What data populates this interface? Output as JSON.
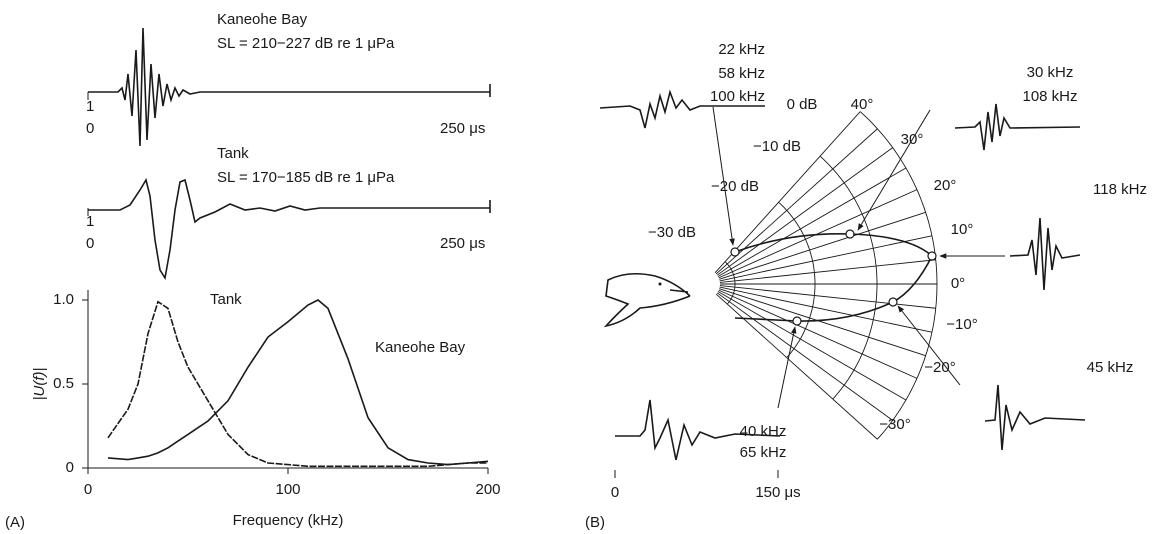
{
  "panel_a": {
    "label": "(A)",
    "waveforms": [
      {
        "site": "Kaneohe Bay",
        "source_level": "SL = 210−227 dB re 1 μPa",
        "y_top": "1",
        "y_bottom": "0",
        "time_end": "250 μs"
      },
      {
        "site": "Tank",
        "source_level": "SL = 170−185 dB re 1 μPa",
        "y_top": "1",
        "y_bottom": "0",
        "time_end": "250 μs"
      }
    ]
  },
  "chart_data": {
    "type": "line",
    "xlabel": "Frequency (kHz)",
    "ylabel": "|U(f)|",
    "x": [
      10,
      20,
      25,
      30,
      35,
      40,
      45,
      50,
      55,
      60,
      70,
      80,
      90,
      100,
      110,
      115,
      120,
      130,
      140,
      150,
      160,
      170,
      180,
      190,
      200
    ],
    "series": [
      {
        "name": "Tank",
        "color": "#1a1a1a",
        "line_style": "dashed",
        "values": [
          0.18,
          0.35,
          0.5,
          0.8,
          0.99,
          0.95,
          0.75,
          0.6,
          0.5,
          0.4,
          0.2,
          0.08,
          0.03,
          0.02,
          0.01,
          0.01,
          0.01,
          0.01,
          0.01,
          0.01,
          0.01,
          0.01,
          0.02,
          0.03,
          0.03
        ]
      },
      {
        "name": "Kaneohe Bay",
        "color": "#1a1a1a",
        "line_style": "solid",
        "values": [
          0.06,
          0.05,
          0.06,
          0.07,
          0.09,
          0.12,
          0.16,
          0.2,
          0.24,
          0.28,
          0.4,
          0.6,
          0.78,
          0.87,
          0.97,
          1.0,
          0.95,
          0.65,
          0.3,
          0.12,
          0.05,
          0.03,
          0.02,
          0.03,
          0.04
        ]
      }
    ],
    "xlim": [
      0,
      200
    ],
    "xticks": [
      0,
      100,
      200
    ],
    "ylim": [
      0,
      1
    ],
    "yticks": [
      0,
      0.5,
      {
        "value": 1,
        "label": "1.0"
      }
    ]
  },
  "panel_b": {
    "label": "(B)",
    "db_labels": [
      "0 dB",
      "−10 dB",
      "−20 dB",
      "−30 dB"
    ],
    "angle_labels": [
      "40°",
      "30°",
      "20°",
      "10°",
      "0°",
      "−10°",
      "−20°",
      "−30°"
    ],
    "waveform_labels": [
      [
        "22 kHz",
        "58 kHz",
        "100 kHz"
      ],
      [
        "30 kHz",
        "108 kHz"
      ],
      [
        "118 kHz"
      ],
      [
        "45 kHz"
      ],
      [
        "40 kHz",
        "65 kHz"
      ]
    ],
    "time_scale": {
      "start": "0",
      "end": "150 μs"
    }
  }
}
